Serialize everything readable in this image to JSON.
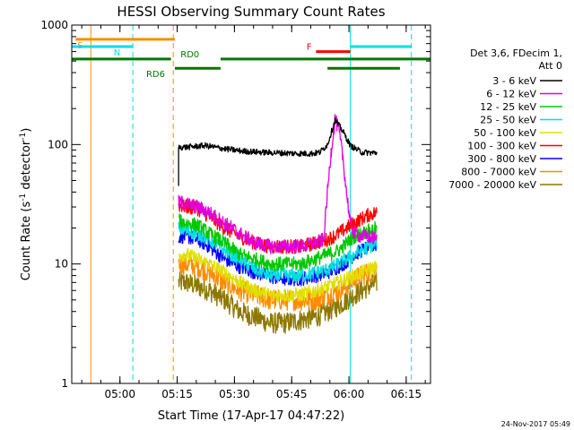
{
  "chart_data": {
    "type": "line",
    "title": "HESSI Observing Summary Count Rates",
    "xlabel": "Start Time (17-Apr-17 04:47:22)",
    "ylabel_main": "Count Rate (s",
    "ylabel_sup1": "-1",
    "ylabel_mid": " detector",
    "ylabel_sup2": "-1",
    "ylabel_end": ")",
    "yscale": "log",
    "ylim": [
      1,
      1000
    ],
    "xlim_minutes": [
      0,
      94
    ],
    "x_ticks": [
      {
        "t": 12.63,
        "label": "05:00"
      },
      {
        "t": 27.63,
        "label": "05:15"
      },
      {
        "t": 42.63,
        "label": "05:30"
      },
      {
        "t": 57.63,
        "label": "05:45"
      },
      {
        "t": 72.63,
        "label": "06:00"
      },
      {
        "t": 87.63,
        "label": "06:15"
      }
    ],
    "y_ticks": [
      {
        "v": 1,
        "label": "1"
      },
      {
        "v": 10,
        "label": "10"
      },
      {
        "v": 100,
        "label": "100"
      },
      {
        "v": 1000,
        "label": "1000"
      }
    ],
    "legend": {
      "header": "Det 3,6, FDecim 1,",
      "header2": "Att 0",
      "placement": "right"
    },
    "series": [
      {
        "name": "3 - 6 keV",
        "color": "#000000",
        "x": [
          28,
          30,
          35,
          40,
          45,
          50,
          55,
          60,
          63,
          65,
          67,
          69,
          71,
          73,
          76,
          80
        ],
        "y": [
          95,
          95,
          98,
          92,
          88,
          86,
          85,
          84,
          84,
          86,
          100,
          160,
          130,
          98,
          86,
          85
        ]
      },
      {
        "name": "6 - 12 keV",
        "color": "#e000e0",
        "x": [
          28,
          30,
          33,
          36,
          40,
          44,
          48,
          52,
          56,
          60,
          64,
          66,
          67,
          68,
          69,
          70,
          71,
          72,
          73,
          74,
          76,
          78,
          80
        ],
        "y": [
          33,
          32,
          30,
          27,
          22,
          18,
          15,
          14,
          14,
          14,
          15,
          16,
          40,
          90,
          165,
          130,
          80,
          40,
          22,
          18,
          17,
          17,
          16
        ]
      },
      {
        "name": "12 - 25 keV",
        "color": "#00c800",
        "x": [
          28,
          30,
          33,
          36,
          40,
          44,
          48,
          52,
          56,
          60,
          64,
          67,
          70,
          72,
          74,
          76,
          78,
          80
        ],
        "y": [
          23,
          22,
          21,
          18,
          15,
          12,
          11,
          10,
          10,
          10,
          11,
          12,
          13,
          15,
          17,
          18,
          19,
          20
        ]
      },
      {
        "name": "25 - 50 keV",
        "color": "#00e0e0",
        "x": [
          28,
          30,
          33,
          36,
          40,
          44,
          48,
          52,
          56,
          60,
          64,
          67,
          70,
          72,
          74,
          76,
          78,
          80
        ],
        "y": [
          20,
          19,
          18,
          16,
          13,
          11,
          9,
          8,
          8,
          8,
          8.5,
          9,
          10,
          11,
          12,
          13,
          14,
          15
        ]
      },
      {
        "name": "50 - 100 keV",
        "color": "#e0e000",
        "x": [
          28,
          30,
          33,
          36,
          40,
          44,
          48,
          52,
          56,
          60,
          64,
          67,
          70,
          72,
          74,
          76,
          78,
          80
        ],
        "y": [
          12,
          12,
          11,
          10,
          8.5,
          7,
          6,
          5.5,
          5.5,
          5.5,
          6,
          6.5,
          7,
          7.5,
          8,
          8.5,
          9,
          9.5
        ]
      },
      {
        "name": "100 - 300 keV",
        "color": "#ff0000",
        "x": [
          28,
          30,
          33,
          36,
          40,
          44,
          48,
          52,
          56,
          60,
          64,
          67,
          70,
          72,
          74,
          76,
          78,
          80
        ],
        "y": [
          31,
          30,
          29,
          25,
          20,
          17,
          15,
          14,
          14,
          14,
          15,
          16,
          18,
          20,
          22,
          24,
          26,
          27
        ]
      },
      {
        "name": "300 - 800 keV",
        "color": "#0000ff",
        "x": [
          28,
          30,
          33,
          36,
          40,
          44,
          48,
          52,
          56,
          60,
          64,
          67,
          70,
          72,
          74,
          76,
          78,
          80
        ],
        "y": [
          17,
          17,
          16,
          14,
          11,
          9.5,
          8.5,
          7.8,
          7.5,
          7.5,
          8,
          8.5,
          9.5,
          10.5,
          12,
          13,
          14,
          14.5
        ]
      },
      {
        "name": "800 - 7000 keV",
        "color": "#ff8c00",
        "x": [
          28,
          30,
          33,
          36,
          40,
          44,
          48,
          52,
          56,
          60,
          64,
          67,
          70,
          72,
          74,
          76,
          78,
          80
        ],
        "y": [
          10,
          10,
          9.5,
          8.5,
          7,
          6,
          5.5,
          5,
          5,
          5,
          5,
          5.5,
          6,
          6.5,
          7.5,
          8,
          8.5,
          9
        ]
      },
      {
        "name": "7000 - 20000 keV",
        "color": "#8c7800",
        "x": [
          28,
          30,
          33,
          36,
          40,
          44,
          48,
          52,
          56,
          60,
          64,
          67,
          70,
          72,
          74,
          76,
          78,
          80
        ],
        "y": [
          7,
          7,
          6.5,
          6,
          5,
          4,
          3.6,
          3.2,
          3.2,
          3.4,
          3.6,
          4,
          4.5,
          5,
          5.5,
          6,
          6.5,
          7
        ]
      }
    ],
    "state_bars": [
      {
        "label": "S",
        "color": "#ff8c00",
        "segments": [
          [
            1,
            27
          ]
        ],
        "level": 760,
        "label_t": 1.5
      },
      {
        "label": "N",
        "color": "#00e0e0",
        "segments": [
          [
            0,
            16
          ],
          [
            73,
            89
          ]
        ],
        "level": 660,
        "label_t": 11
      },
      {
        "label": "RD0",
        "color": "#007800",
        "segments": [
          [
            0,
            26
          ],
          [
            39,
            94
          ]
        ],
        "level": 520,
        "label_t": 28.5
      },
      {
        "label": "RD6",
        "color": "#007800",
        "segments": [
          [
            27,
            39
          ],
          [
            67,
            86
          ]
        ],
        "level": 435,
        "label_t": 19.5
      },
      {
        "label": "F",
        "color": "#ff0000",
        "segments": [
          [
            64,
            73
          ]
        ],
        "level": 600,
        "label_t": 61.5
      }
    ],
    "vlines": [
      {
        "t": 5,
        "color": "#ff8c00",
        "style": "solid"
      },
      {
        "t": 16,
        "color": "#00e0e0",
        "style": "dashed"
      },
      {
        "t": 26.6,
        "color": "#ff8c00",
        "style": "dashed"
      },
      {
        "t": 73,
        "color": "#00e0e0",
        "style": "solid"
      },
      {
        "t": 89,
        "color": "#00e0e0",
        "style": "dashed"
      },
      {
        "t": 0,
        "color": "#00e0e0",
        "style": "solid"
      }
    ],
    "footer_date": "24-Nov-2017 05:49"
  }
}
